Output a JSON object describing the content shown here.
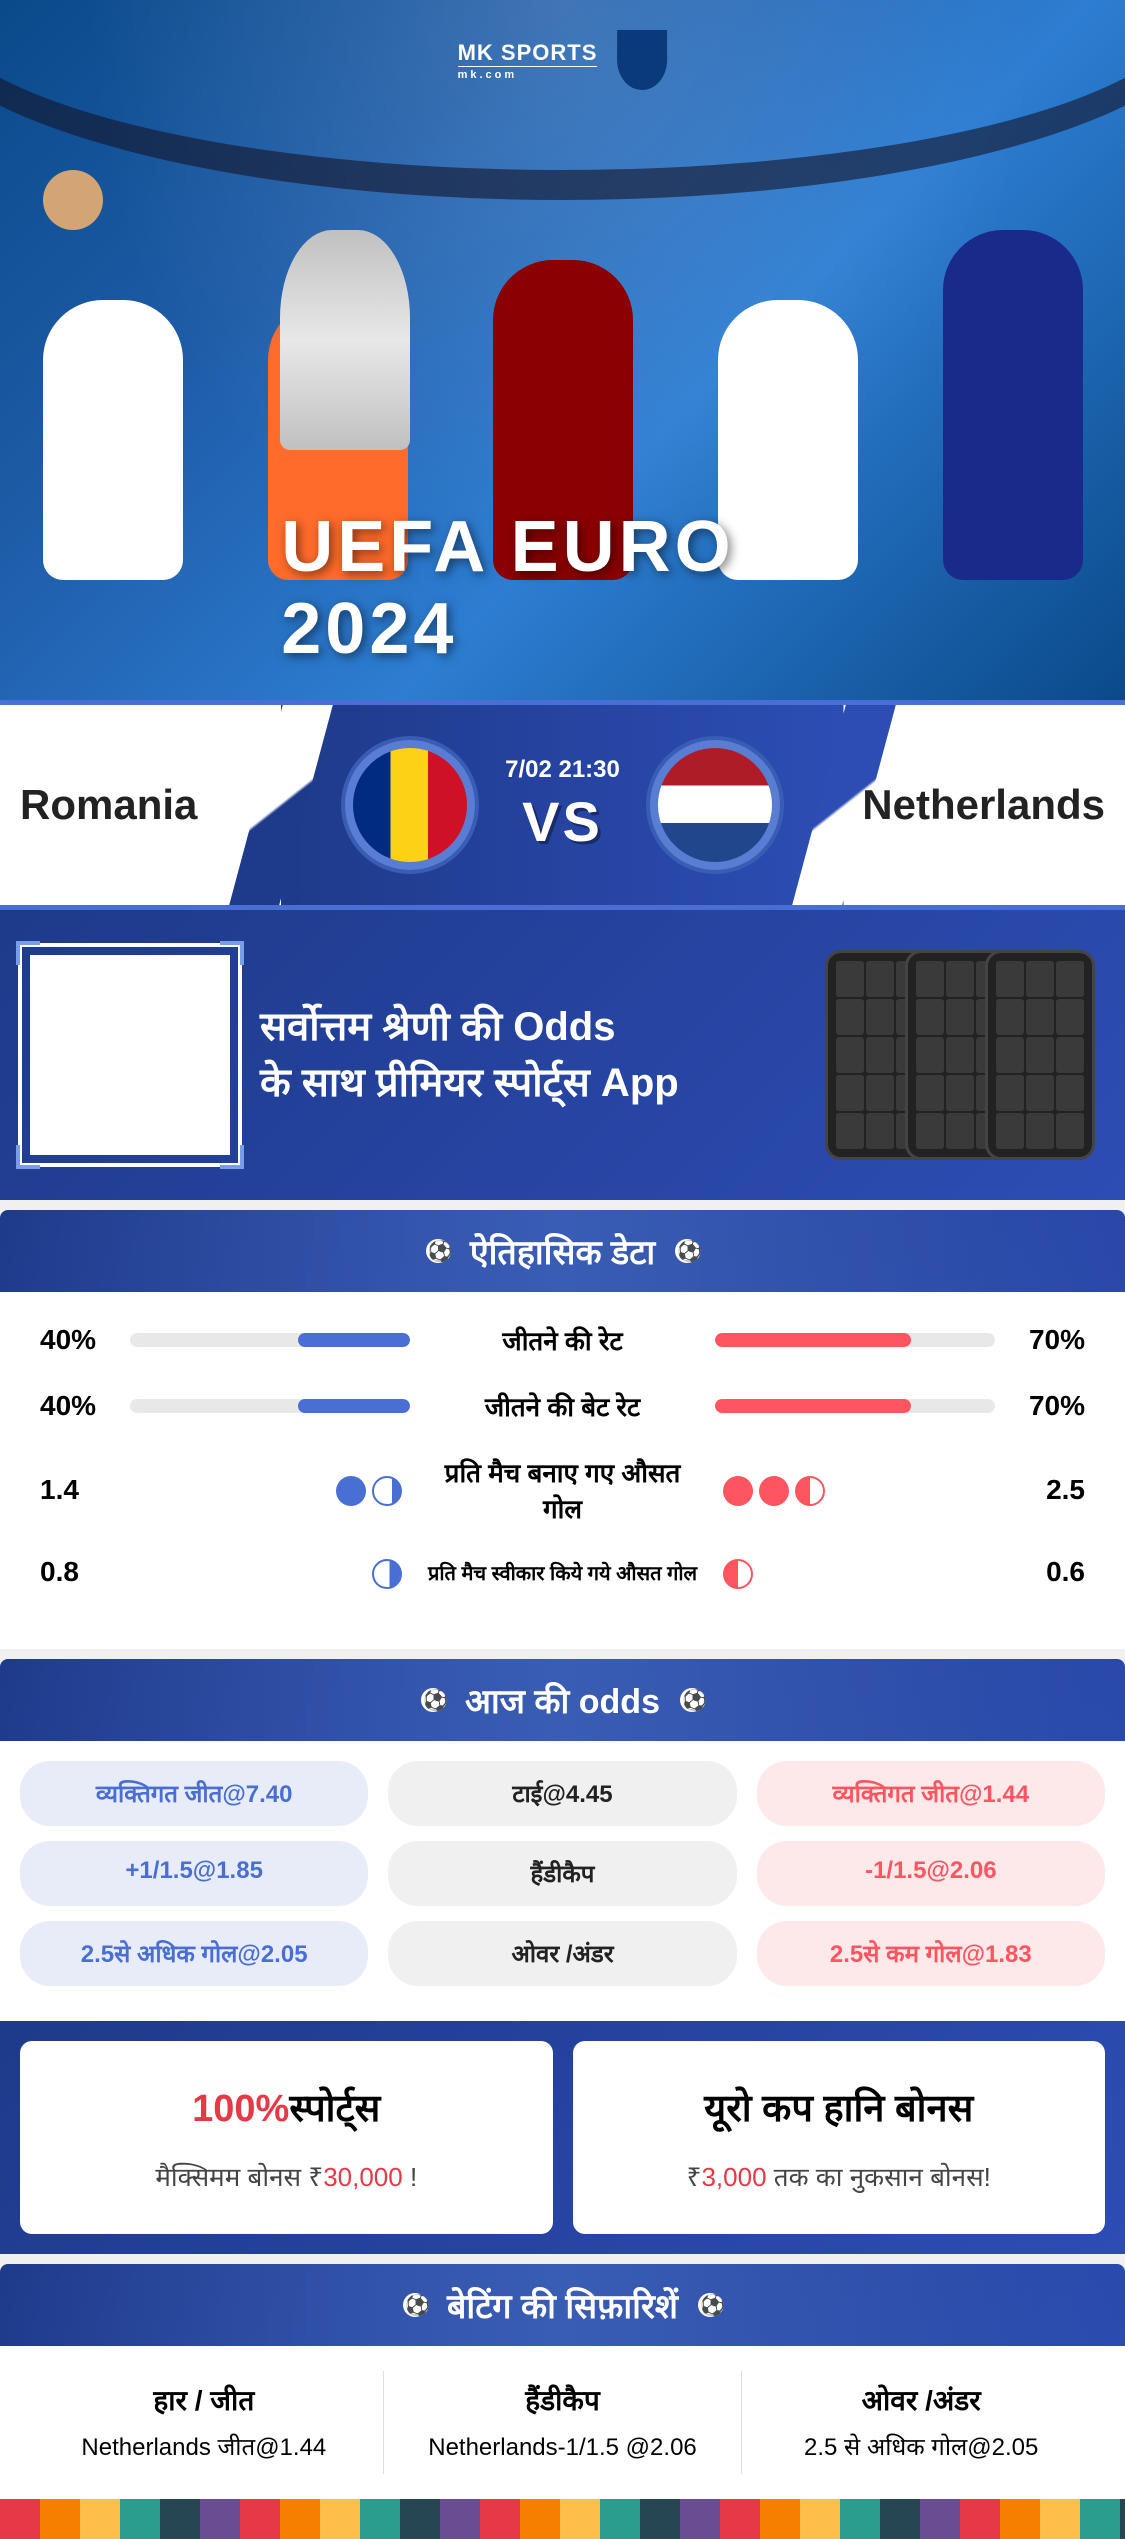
{
  "hero": {
    "logo": "MK SPORTS",
    "logo_sub": "mk.com",
    "title": "UEFA EURO 2024"
  },
  "match": {
    "team_left": "Romania",
    "team_right": "Netherlands",
    "datetime": "7/02 21:30",
    "vs": "VS"
  },
  "promo": {
    "line1": "सर्वोत्तम श्रेणी की Odds",
    "line2": "के साथ प्रीमियर स्पोर्ट्स App"
  },
  "historical": {
    "title": "ऐतिहासिक डेटा",
    "rows": [
      {
        "left": "40%",
        "label": "जीतने की रेट",
        "right": "70%",
        "left_pct": 40,
        "right_pct": 70,
        "type": "bar"
      },
      {
        "left": "40%",
        "label": "जीतने की बेट रेट",
        "right": "70%",
        "left_pct": 40,
        "right_pct": 70,
        "type": "bar"
      },
      {
        "left": "1.4",
        "label": "प्रति मैच बनाए गए औसत गोल",
        "right": "2.5",
        "type": "goals",
        "left_goals": 1.4,
        "right_goals": 2.5
      },
      {
        "left": "0.8",
        "label": "प्रति मैच स्वीकार किये गये औसत गोल",
        "right": "0.6",
        "type": "goals_small",
        "left_goals": 0.8,
        "right_goals": 0.6
      }
    ]
  },
  "odds": {
    "title": "आज की odds",
    "rows": [
      {
        "left": "व्यक्तिगत जीत@7.40",
        "center": "टाई@4.45",
        "right": "व्यक्तिगत जीत@1.44"
      },
      {
        "left": "+1/1.5@1.85",
        "center": "हैंडीकैप",
        "right": "-1/1.5@2.06"
      },
      {
        "left": "2.5से अधिक गोल@2.05",
        "center": "ओवर /अंडर",
        "right": "2.5से कम गोल@1.83"
      }
    ]
  },
  "bonuses": {
    "left": {
      "pct": "100%",
      "label": "स्पोर्ट्स",
      "sub_pre": "मैक्सिमम बोनस  ₹",
      "amount": "30,000",
      "sub_post": " !"
    },
    "right": {
      "title": "यूरो कप हानि बोनस",
      "sub_pre": "₹",
      "amount": "3,000",
      "sub_post": " तक का नुकसान बोनस!"
    }
  },
  "reco": {
    "title": "बेटिंग की सिफ़ारिशें",
    "cols": [
      {
        "label": "हार / जीत",
        "value": "Netherlands जीत@1.44"
      },
      {
        "label": "हैंडीकैप",
        "value": "Netherlands-1/1.5 @2.06"
      },
      {
        "label": "ओवर /अंडर",
        "value": "2.5 से अधिक गोल@2.05"
      }
    ]
  },
  "colors": {
    "primary_blue": "#1e3a8a",
    "accent_blue": "#4a6fd4",
    "accent_red": "#ff5560",
    "highlight_red": "#e63946"
  }
}
